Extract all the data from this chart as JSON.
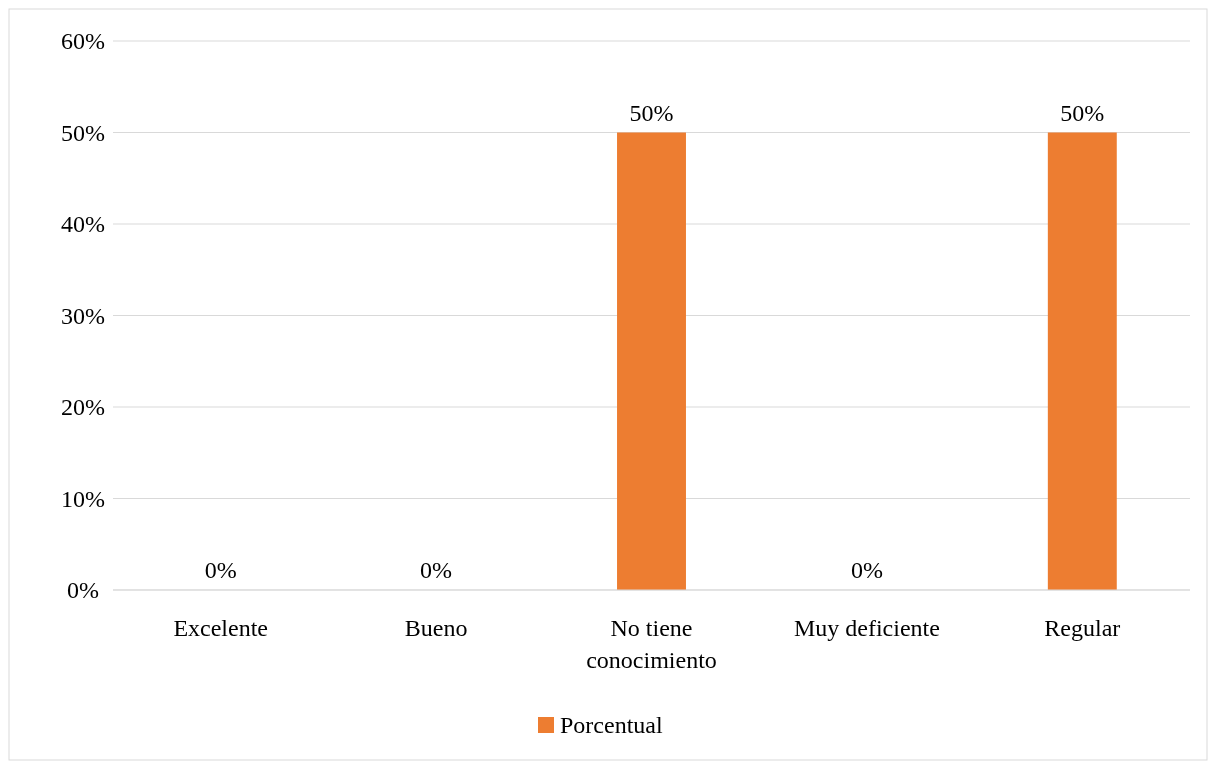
{
  "chart_data": {
    "type": "bar",
    "categories": [
      "Excelente",
      "Bueno",
      "No tiene conocimiento",
      "Muy deficiente",
      "Regular"
    ],
    "series": [
      {
        "name": "Porcentual",
        "color": "#ed7d31",
        "values": [
          0,
          0,
          50,
          0,
          50
        ],
        "value_labels": [
          "0%",
          "0%",
          "50%",
          "0%",
          "50%"
        ]
      }
    ],
    "ylim": [
      0,
      60
    ],
    "yticks": [
      {
        "value": 0,
        "label": "0%"
      },
      {
        "value": 10,
        "label": "10%"
      },
      {
        "value": 20,
        "label": "20%"
      },
      {
        "value": 30,
        "label": "30%"
      },
      {
        "value": 40,
        "label": "40%"
      },
      {
        "value": 50,
        "label": "50%"
      },
      {
        "value": 60,
        "label": "60%"
      }
    ],
    "grid": "y",
    "legend": "bottom"
  }
}
